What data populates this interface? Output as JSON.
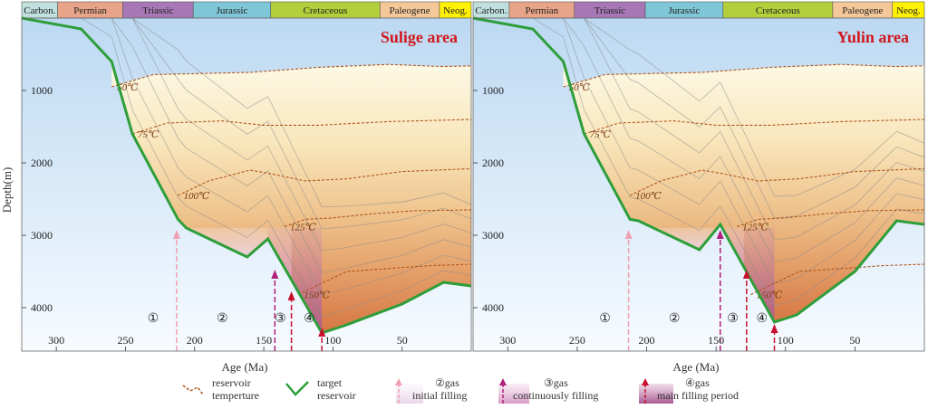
{
  "chart_data": [
    {
      "type": "area",
      "panel": "left",
      "title": "Sulige area",
      "xlabel": "Age (Ma)",
      "ylabel": "Depth(m)",
      "xlim": [
        325,
        0
      ],
      "ylim": [
        0,
        4600
      ],
      "x_reversed": true,
      "y_reversed": true,
      "x_ticks": [
        300,
        250,
        200,
        150,
        100,
        50
      ],
      "y_ticks": [
        1000,
        2000,
        3000,
        4000
      ],
      "periods": [
        {
          "name": "Carbon.",
          "start": 325,
          "end": 299,
          "color": "#bfe0dc"
        },
        {
          "name": "Permian",
          "start": 299,
          "end": 252,
          "color": "#e8a488"
        },
        {
          "name": "Triassic",
          "start": 252,
          "end": 201,
          "color": "#a877b5"
        },
        {
          "name": "Jurassic",
          "start": 201,
          "end": 145,
          "color": "#7fc6d6"
        },
        {
          "name": "Cretaceous",
          "start": 145,
          "end": 66,
          "color": "#b3cf3a"
        },
        {
          "name": "Paleogene",
          "start": 66,
          "end": 23,
          "color": "#f5c89a"
        },
        {
          "name": "Neog.",
          "start": 23,
          "end": 0,
          "color": "#fff200"
        }
      ],
      "target_reservoir": {
        "age": [
          325,
          282,
          260,
          245,
          212,
          206,
          162,
          147,
          108,
          92,
          50,
          20,
          0
        ],
        "depth": [
          0,
          150,
          600,
          1600,
          2780,
          2900,
          3300,
          3050,
          4350,
          4250,
          3950,
          3650,
          3700
        ]
      },
      "isotherms": [
        {
          "label": "50℃",
          "age": [
            260,
            230,
            160,
            110,
            60,
            20,
            0
          ],
          "depth": [
            950,
            780,
            750,
            680,
            640,
            670,
            660
          ]
        },
        {
          "label": "75℃",
          "age": [
            245,
            220,
            180,
            150,
            110,
            60,
            0
          ],
          "depth": [
            1600,
            1450,
            1420,
            1480,
            1480,
            1430,
            1400
          ]
        },
        {
          "label": "100℃",
          "age": [
            212,
            190,
            160,
            145,
            120,
            90,
            50,
            0
          ],
          "depth": [
            2450,
            2250,
            2100,
            2150,
            2250,
            2220,
            2120,
            2080
          ]
        },
        {
          "label": "125℃",
          "age": [
            135,
            120,
            100,
            70,
            40,
            0
          ],
          "depth": [
            2880,
            2780,
            2760,
            2700,
            2660,
            2650
          ]
        },
        {
          "label": "150℃",
          "age": [
            125,
            110,
            90,
            60,
            30,
            0
          ],
          "depth": [
            3820,
            3680,
            3500,
            3460,
            3420,
            3400
          ]
        }
      ],
      "events": [
        {
          "label": "①",
          "age": 230
        },
        {
          "label": "②",
          "age": 180
        },
        {
          "label": "③",
          "age": 138
        },
        {
          "label": "④",
          "age": 117
        }
      ],
      "gas_filling_arrows": [
        {
          "age": 213,
          "top_depth": 2950,
          "type": "initial filling",
          "color": "#f0a0b0"
        },
        {
          "age": 142,
          "top_depth": 3500,
          "type": "continuously filling",
          "color": "#b0207a"
        },
        {
          "age": 130,
          "top_depth": 3800,
          "type": "main filling period",
          "color": "#c8102e"
        },
        {
          "age": 108,
          "top_depth": 4300,
          "type": "main filling period",
          "color": "#c8102e"
        }
      ]
    },
    {
      "type": "area",
      "panel": "right",
      "title": "Yulin area",
      "xlabel": "Age (Ma)",
      "xlim": [
        325,
        0
      ],
      "ylim": [
        0,
        4600
      ],
      "x_reversed": true,
      "y_reversed": true,
      "x_ticks": [
        300,
        250,
        200,
        150,
        100,
        50
      ],
      "y_ticks": [
        1000,
        2000,
        3000,
        4000
      ],
      "periods": [
        {
          "name": "Carbon.",
          "start": 325,
          "end": 299,
          "color": "#bfe0dc"
        },
        {
          "name": "Permian",
          "start": 299,
          "end": 252,
          "color": "#e8a488"
        },
        {
          "name": "Triassic",
          "start": 252,
          "end": 201,
          "color": "#a877b5"
        },
        {
          "name": "Jurassic",
          "start": 201,
          "end": 145,
          "color": "#7fc6d6"
        },
        {
          "name": "Cretaceous",
          "start": 145,
          "end": 66,
          "color": "#b3cf3a"
        },
        {
          "name": "Paleogene",
          "start": 66,
          "end": 23,
          "color": "#f5c89a"
        },
        {
          "name": "Neog.",
          "start": 23,
          "end": 0,
          "color": "#fff200"
        }
      ],
      "target_reservoir": {
        "age": [
          325,
          282,
          260,
          245,
          212,
          206,
          162,
          147,
          108,
          92,
          50,
          20,
          0
        ],
        "depth": [
          0,
          150,
          600,
          1600,
          2780,
          2800,
          3200,
          2850,
          4200,
          4100,
          3500,
          2800,
          2850
        ]
      },
      "isotherms": [
        {
          "label": "50℃",
          "age": [
            260,
            230,
            160,
            110,
            60,
            20,
            0
          ],
          "depth": [
            950,
            780,
            750,
            680,
            640,
            670,
            660
          ]
        },
        {
          "label": "75℃",
          "age": [
            245,
            220,
            180,
            150,
            110,
            60,
            0
          ],
          "depth": [
            1600,
            1450,
            1420,
            1480,
            1480,
            1430,
            1400
          ]
        },
        {
          "label": "100℃",
          "age": [
            212,
            190,
            160,
            145,
            120,
            90,
            50,
            0
          ],
          "depth": [
            2450,
            2250,
            2100,
            2150,
            2250,
            2220,
            2120,
            2080
          ]
        },
        {
          "label": "125℃",
          "age": [
            135,
            120,
            100,
            70,
            40,
            0
          ],
          "depth": [
            2880,
            2780,
            2760,
            2700,
            2660,
            2650
          ]
        },
        {
          "label": "150℃",
          "age": [
            125,
            110,
            90,
            60,
            30,
            0
          ],
          "depth": [
            3820,
            3680,
            3500,
            3460,
            3420,
            3400
          ]
        }
      ],
      "events": [
        {
          "label": "①",
          "age": 230
        },
        {
          "label": "②",
          "age": 180
        },
        {
          "label": "③",
          "age": 138
        },
        {
          "label": "④",
          "age": 117
        }
      ],
      "gas_filling_arrows": [
        {
          "age": 213,
          "top_depth": 2950,
          "type": "initial filling",
          "color": "#f0a0b0"
        },
        {
          "age": 147,
          "top_depth": 2950,
          "type": "continuously filling",
          "color": "#b0207a"
        },
        {
          "age": 128,
          "top_depth": 3500,
          "type": "main filling period",
          "color": "#c8102e"
        },
        {
          "age": 108,
          "top_depth": 4250,
          "type": "main filling period",
          "color": "#c8102e"
        }
      ]
    }
  ],
  "legend": {
    "temperature_line": "reservoir\ntemperture",
    "reservoir_line": "target\nreservoir",
    "gas2": "②gas\ninitial filling",
    "gas3": "③gas\ncontinuously filling",
    "gas4": "④gas\nmain filling period",
    "temperature_color": "#b0541a",
    "reservoir_color": "#2e9e3a"
  }
}
